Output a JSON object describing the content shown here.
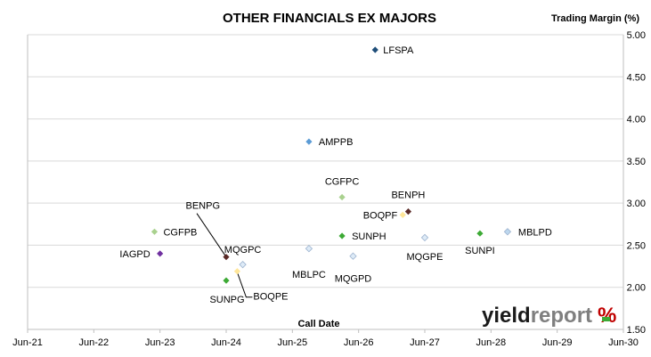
{
  "chart_data": {
    "type": "scatter",
    "title": "OTHER FINANCIALS EX MAJORS",
    "xlabel": "Call Date",
    "ylabel": "Trading Margin (%)",
    "xlim": [
      "2021-06",
      "2030-06"
    ],
    "ylim": [
      1.5,
      5.0
    ],
    "x_ticks": [
      "Jun-21",
      "Jun-22",
      "Jun-23",
      "Jun-24",
      "Jun-25",
      "Jun-26",
      "Jun-27",
      "Jun-28",
      "Jun-29",
      "Jun-30"
    ],
    "y_ticks": [
      "1.50",
      "2.00",
      "2.50",
      "3.00",
      "3.50",
      "4.00",
      "4.50",
      "5.00"
    ],
    "y_axis_side": "right",
    "grid": "horizontal",
    "points": [
      {
        "label": "LFSPA",
        "x": "2026-09",
        "y": 4.82,
        "color": "#1f4e79"
      },
      {
        "label": "AMPPB",
        "x": "2025-09",
        "y": 3.73,
        "color": "#5b9bd5"
      },
      {
        "label": "CGFPC",
        "x": "2026-03",
        "y": 3.07,
        "color": "#a9d18e"
      },
      {
        "label": "BENPH",
        "x": "2027-03",
        "y": 2.9,
        "color": "#5a2a27"
      },
      {
        "label": "BOQPF",
        "x": "2027-02",
        "y": 2.86,
        "color": "#ffe699"
      },
      {
        "label": "CGFPB",
        "x": "2023-05",
        "y": 2.66,
        "color": "#a9d18e"
      },
      {
        "label": "SUNPH",
        "x": "2026-03",
        "y": 2.61,
        "color": "#3daa35"
      },
      {
        "label": "SUNPI",
        "x": "2028-04",
        "y": 2.64,
        "color": "#3daa35"
      },
      {
        "label": "MBLPD",
        "x": "2028-09",
        "y": 2.66,
        "color": "#bdd7ee"
      },
      {
        "label": "MQGPE",
        "x": "2027-06",
        "y": 2.59,
        "color": "#deebf7"
      },
      {
        "label": "MBLPC",
        "x": "2025-09",
        "y": 2.46,
        "color": "#deebf7"
      },
      {
        "label": "IAGPD",
        "x": "2023-06",
        "y": 2.4,
        "color": "#7030a0"
      },
      {
        "label": "MQGPD",
        "x": "2026-05",
        "y": 2.37,
        "color": "#deebf7"
      },
      {
        "label": "BENPG",
        "x": "2024-06",
        "y": 2.36,
        "color": "#5a2a27"
      },
      {
        "label": "MQGPC",
        "x": "2024-09",
        "y": 2.27,
        "color": "#deebf7"
      },
      {
        "label": "BOQPE",
        "x": "2024-08",
        "y": 2.19,
        "color": "#ffe699"
      },
      {
        "label": "SUNPG",
        "x": "2024-06",
        "y": 2.08,
        "color": "#3daa35"
      }
    ]
  },
  "logo": {
    "part1": "yield",
    "part2": "report",
    "mark": "%"
  },
  "colors": {
    "grid": "#d9d9d9",
    "axis": "#bfbfbf",
    "logo_dark": "#1a1a1a",
    "logo_grey": "#7f7f7f",
    "logo_red": "#c00000",
    "logo_green": "#3daa35"
  }
}
